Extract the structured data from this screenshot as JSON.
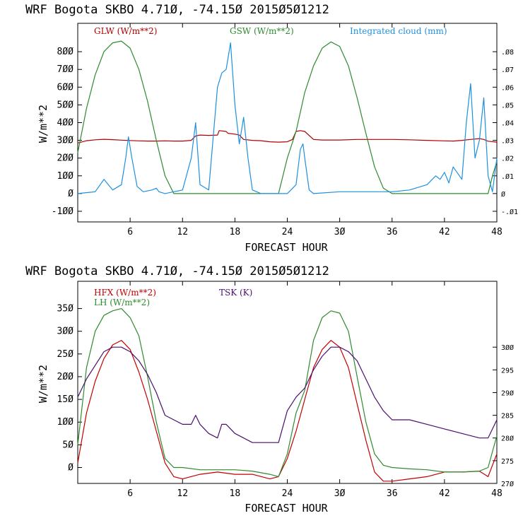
{
  "chart_data": [
    {
      "type": "line",
      "title": "WRF  Bogota SKBO    4.71Ø, -74.15Ø  2015Ø5Ø1212",
      "xlabel": "FORECAST HOUR",
      "ylabel": "W/m**2",
      "xlim": [
        0,
        48
      ],
      "ylim": [
        -160,
        960
      ],
      "y2lim": [
        -0.016,
        0.096
      ],
      "xticks": [
        6,
        12,
        18,
        24,
        30,
        36,
        42,
        48
      ],
      "xtick_labels": [
        "6",
        "12",
        "18",
        "24",
        "3Ø",
        "36",
        "42",
        "48"
      ],
      "yticks": [
        -100,
        0,
        100,
        200,
        300,
        400,
        500,
        600,
        700,
        800
      ],
      "ytick_labels": [
        "-1ØØ",
        "Ø",
        "1ØØ",
        "2ØØ",
        "3ØØ",
        "4ØØ",
        "5ØØ",
        "6ØØ",
        "7ØØ",
        "8ØØ"
      ],
      "y2ticks": [
        -0.01,
        0,
        0.01,
        0.02,
        0.03,
        0.04,
        0.05,
        0.06,
        0.07,
        0.08
      ],
      "y2tick_labels": [
        "-.Ø1",
        "Ø",
        ".Ø1",
        ".Ø2",
        ".Ø3",
        ".Ø4",
        ".Ø5",
        ".Ø6",
        ".Ø7",
        ".Ø8"
      ],
      "series": [
        {
          "name": "GLW (W/m**2)",
          "color": "#b00000",
          "axis": "left",
          "x": [
            0,
            1,
            2,
            3,
            4,
            5,
            6,
            7,
            8,
            9,
            10,
            11,
            12,
            13,
            13.5,
            14,
            15,
            16,
            16.2,
            17,
            17.2,
            18,
            18.5,
            19,
            20,
            21,
            22,
            23,
            24,
            24.6,
            25,
            25.5,
            26,
            27,
            28,
            30,
            32,
            34,
            36,
            38,
            40,
            42,
            43,
            44,
            45,
            46,
            46.5,
            47,
            48
          ],
          "y": [
            285,
            298,
            303,
            306,
            304,
            301,
            299,
            297,
            296,
            296,
            297,
            296,
            296,
            300,
            325,
            330,
            328,
            330,
            355,
            350,
            340,
            335,
            330,
            305,
            300,
            298,
            292,
            290,
            292,
            305,
            350,
            355,
            350,
            305,
            302,
            302,
            305,
            305,
            305,
            303,
            300,
            297,
            296,
            300,
            305,
            310,
            305,
            295,
            290
          ]
        },
        {
          "name": "GSW (W/m**2)",
          "color": "#2e8b2e",
          "axis": "left",
          "x": [
            0,
            1,
            2,
            3,
            4,
            5,
            6,
            7,
            8,
            9,
            10,
            11,
            12,
            23,
            24,
            25,
            26,
            27,
            28,
            29,
            30,
            31,
            32,
            33,
            34,
            35,
            36,
            47,
            47.5,
            48
          ],
          "y": [
            230,
            480,
            670,
            800,
            850,
            860,
            820,
            700,
            520,
            300,
            100,
            0,
            0,
            0,
            200,
            350,
            570,
            720,
            820,
            855,
            830,
            720,
            540,
            340,
            150,
            30,
            0,
            0,
            100,
            180
          ]
        },
        {
          "name": "Integrated cloud (mm)",
          "color": "#1e90e0",
          "axis": "right",
          "x": [
            0,
            2,
            3,
            4,
            5,
            5.5,
            5.8,
            6.2,
            6.8,
            7.5,
            8.5,
            9,
            9.3,
            10,
            11,
            12,
            13,
            13.5,
            14,
            15,
            16,
            16.5,
            17,
            17.5,
            18,
            18.5,
            19,
            19.5,
            20,
            21,
            22,
            23,
            24,
            25,
            25.5,
            25.8,
            26,
            26.5,
            27,
            30,
            33,
            36,
            38,
            40,
            41,
            41.5,
            42,
            42.5,
            43,
            44,
            44.5,
            45,
            45.5,
            46,
            46.5,
            47,
            47.5,
            48
          ],
          "y": [
            0,
            0.001,
            0.008,
            0.002,
            0.005,
            0.02,
            0.032,
            0.02,
            0.004,
            0.001,
            0.002,
            0.003,
            0.001,
            0,
            0.001,
            0.002,
            0.02,
            0.04,
            0.005,
            0.002,
            0.06,
            0.068,
            0.07,
            0.085,
            0.05,
            0.028,
            0.043,
            0.02,
            0.002,
            0,
            0,
            0,
            0,
            0.005,
            0.025,
            0.028,
            0.02,
            0.002,
            0,
            0.001,
            0.001,
            0.001,
            0.002,
            0.005,
            0.01,
            0.008,
            0.012,
            0.006,
            0.015,
            0.008,
            0.04,
            0.062,
            0.02,
            0.03,
            0.054,
            0.01,
            0.001,
            0.02
          ]
        }
      ]
    },
    {
      "type": "line",
      "title": "WRF  Bogota SKBO    4.71Ø, -74.15Ø  2015Ø5Ø1212",
      "xlabel": "FORECAST HOUR",
      "ylabel": "W/m**2",
      "xlim": [
        0,
        48
      ],
      "ylim": [
        -35,
        410
      ],
      "y2lim": [
        270,
        314.5
      ],
      "xticks": [
        6,
        12,
        18,
        24,
        30,
        36,
        42,
        48
      ],
      "xtick_labels": [
        "6",
        "12",
        "18",
        "24",
        "3Ø",
        "36",
        "42",
        "48"
      ],
      "yticks": [
        0,
        50,
        100,
        150,
        200,
        250,
        300,
        350
      ],
      "ytick_labels": [
        "Ø",
        "5Ø",
        "1ØØ",
        "15Ø",
        "2ØØ",
        "25Ø",
        "3ØØ",
        "35Ø"
      ],
      "y2ticks": [
        270,
        275,
        280,
        285,
        290,
        295,
        300
      ],
      "y2tick_labels": [
        "27Ø",
        "275",
        "28Ø",
        "285",
        "29Ø",
        "295",
        "3ØØ"
      ],
      "series": [
        {
          "name": "HFX (W/m**2)",
          "color": "#c00000",
          "axis": "left",
          "x": [
            0,
            1,
            2,
            3,
            4,
            5,
            6,
            7,
            8,
            9,
            10,
            11,
            12,
            14,
            16,
            18,
            20,
            22,
            23,
            24,
            25,
            26,
            27,
            28,
            29,
            30,
            31,
            32,
            33,
            34,
            35,
            36,
            38,
            40,
            42,
            44,
            46,
            47,
            48
          ],
          "y": [
            10,
            120,
            190,
            240,
            270,
            280,
            260,
            210,
            150,
            80,
            10,
            -20,
            -25,
            -15,
            -10,
            -15,
            -15,
            -25,
            -20,
            20,
            80,
            150,
            220,
            260,
            280,
            265,
            220,
            140,
            60,
            -10,
            -30,
            -30,
            -25,
            -20,
            -10,
            -10,
            -8,
            -20,
            30
          ]
        },
        {
          "name": "LH (W/m**2)",
          "color": "#2e8b2e",
          "axis": "left",
          "x": [
            0,
            1,
            2,
            3,
            4,
            5,
            6,
            7,
            8,
            9,
            10,
            11,
            12,
            14,
            16,
            18,
            20,
            22,
            23,
            24,
            25,
            26,
            27,
            28,
            29,
            30,
            31,
            32,
            33,
            34,
            35,
            36,
            38,
            40,
            42,
            44,
            46,
            47,
            48
          ],
          "y": [
            50,
            220,
            300,
            335,
            345,
            350,
            330,
            290,
            200,
            100,
            20,
            0,
            0,
            -5,
            -5,
            -5,
            -8,
            -15,
            -20,
            30,
            120,
            170,
            280,
            330,
            345,
            340,
            300,
            200,
            100,
            30,
            5,
            0,
            -3,
            -5,
            -10,
            -10,
            -8,
            0,
            70
          ]
        },
        {
          "name": "TSK (K)",
          "color": "#4b0f6e",
          "axis": "right",
          "x": [
            0,
            1,
            2,
            3,
            4,
            5,
            6,
            7,
            8,
            9,
            10,
            11,
            12,
            13,
            13.5,
            14,
            15,
            16,
            16.5,
            17,
            18,
            19,
            20,
            21,
            22,
            23,
            24,
            25,
            26,
            27,
            28,
            29,
            30,
            31,
            32,
            33,
            34,
            35,
            36,
            38,
            40,
            42,
            44,
            46,
            47,
            48
          ],
          "y": [
            289,
            293,
            296,
            299,
            300,
            300,
            299,
            297,
            294,
            290,
            285,
            284,
            283,
            283,
            285,
            283,
            281,
            280,
            283,
            283,
            281,
            280,
            279,
            279,
            279,
            279,
            286,
            289,
            291,
            295,
            298,
            300,
            300,
            299,
            297,
            293,
            289,
            286,
            284,
            284,
            283,
            282,
            281,
            280,
            280,
            284
          ]
        }
      ]
    }
  ]
}
